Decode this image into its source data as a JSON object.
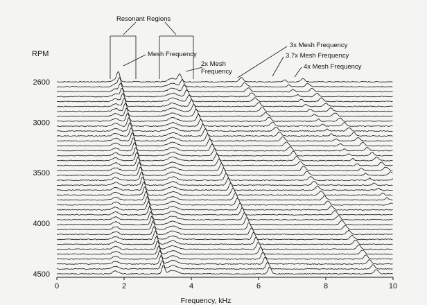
{
  "chart_data": {
    "type": "waterfall",
    "xlabel": "Frequency, kHz",
    "ylabel": "RPM",
    "xlim": [
      0,
      10
    ],
    "x_ticks": [
      "0",
      "2",
      "4",
      "6",
      "8",
      "10"
    ],
    "y_ticks": [
      "2600",
      "3000",
      "3500",
      "4000",
      "4500"
    ],
    "rpm_range": [
      2600,
      4500
    ],
    "annotations": [
      "Resonant Regions",
      "Mesh Frequency",
      "2x Mesh Frequency",
      "3x Mesh Frequency",
      "3.7x Mesh Frequency",
      "4x Mesh Frequency"
    ]
  }
}
